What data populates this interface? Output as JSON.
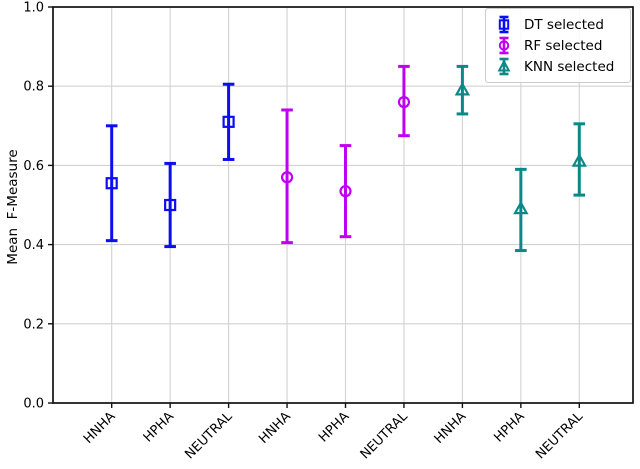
{
  "figure": {
    "background": "#ffffff",
    "axis_color": "#111111",
    "grid_color": "#d2d2d2",
    "tick_label_color": "#000000"
  },
  "chart_data": {
    "type": "errorbar",
    "title": "",
    "xlabel": "",
    "ylabel": "Mean  F-Measure",
    "ylim": [
      0.0,
      1.0
    ],
    "yticks": [
      0.0,
      0.2,
      0.4,
      0.6,
      0.8,
      1.0
    ],
    "categories": [
      "HNHA",
      "HPHA",
      "NEUTRAL",
      "HNHA",
      "HPHA",
      "NEUTRAL",
      "HNHA",
      "HPHA",
      "NEUTRAL"
    ],
    "grid": true,
    "legend_position": "upper-right",
    "series": [
      {
        "name": "DT selected",
        "color": "#0d0df2",
        "marker": "square",
        "x_indices": [
          0,
          1,
          2
        ],
        "categories": [
          "HNHA",
          "HPHA",
          "NEUTRAL"
        ],
        "means": [
          0.555,
          0.5,
          0.71
        ],
        "upper": [
          0.7,
          0.605,
          0.805
        ],
        "lower": [
          0.41,
          0.395,
          0.615
        ]
      },
      {
        "name": "RF selected",
        "color": "#c000f0",
        "marker": "circle",
        "x_indices": [
          3,
          4,
          5
        ],
        "categories": [
          "HNHA",
          "HPHA",
          "NEUTRAL"
        ],
        "means": [
          0.57,
          0.535,
          0.76
        ],
        "upper": [
          0.74,
          0.65,
          0.85
        ],
        "lower": [
          0.405,
          0.42,
          0.675
        ]
      },
      {
        "name": "KNN selected",
        "color": "#0e8787",
        "marker": "triangle",
        "x_indices": [
          6,
          7,
          8
        ],
        "categories": [
          "HNHA",
          "HPHA",
          "NEUTRAL"
        ],
        "means": [
          0.79,
          0.49,
          0.61
        ],
        "upper": [
          0.85,
          0.59,
          0.705
        ],
        "lower": [
          0.73,
          0.385,
          0.525
        ]
      }
    ]
  }
}
